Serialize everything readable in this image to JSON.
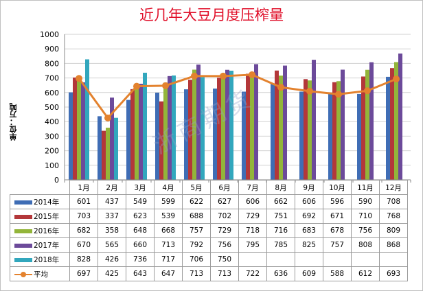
{
  "chart_data": {
    "type": "bar",
    "title": "近几年大豆月度压榨量",
    "ylabel": "单位：万吨",
    "xlabel": "",
    "ylim": [
      0,
      1000
    ],
    "yticks": [
      0,
      100,
      200,
      300,
      400,
      500,
      600,
      700,
      800,
      900,
      1000
    ],
    "grid": true,
    "categories": [
      "1月",
      "2月",
      "3月",
      "4月",
      "5月",
      "6月",
      "7月",
      "8月",
      "9月",
      "10月",
      "11月",
      "12月"
    ],
    "series": [
      {
        "name": "2014年",
        "type": "bar",
        "color": "#3f6db5",
        "values": [
          601,
          437,
          549,
          599,
          622,
          627,
          606,
          662,
          606,
          596,
          590,
          708
        ]
      },
      {
        "name": "2015年",
        "type": "bar",
        "color": "#b3373a",
        "values": [
          703,
          337,
          623,
          539,
          688,
          702,
          729,
          751,
          692,
          671,
          710,
          768
        ]
      },
      {
        "name": "2016年",
        "type": "bar",
        "color": "#93b53a",
        "values": [
          682,
          358,
          648,
          668,
          757,
          729,
          718,
          716,
          683,
          678,
          756,
          809
        ]
      },
      {
        "name": "2017年",
        "type": "bar",
        "color": "#6c4a9a",
        "values": [
          670,
          565,
          660,
          713,
          792,
          756,
          795,
          785,
          825,
          757,
          808,
          868
        ]
      },
      {
        "name": "2018年",
        "type": "bar",
        "color": "#32a7bd",
        "values": [
          828,
          426,
          736,
          717,
          706,
          750,
          null,
          null,
          null,
          null,
          null,
          null
        ]
      },
      {
        "name": "平均",
        "type": "line",
        "color": "#e3822e",
        "values": [
          697,
          425,
          643,
          647,
          713,
          713,
          722,
          636,
          609,
          588,
          612,
          693
        ]
      }
    ],
    "legend_placement": "data-table-below"
  },
  "watermark": "浙商期货"
}
